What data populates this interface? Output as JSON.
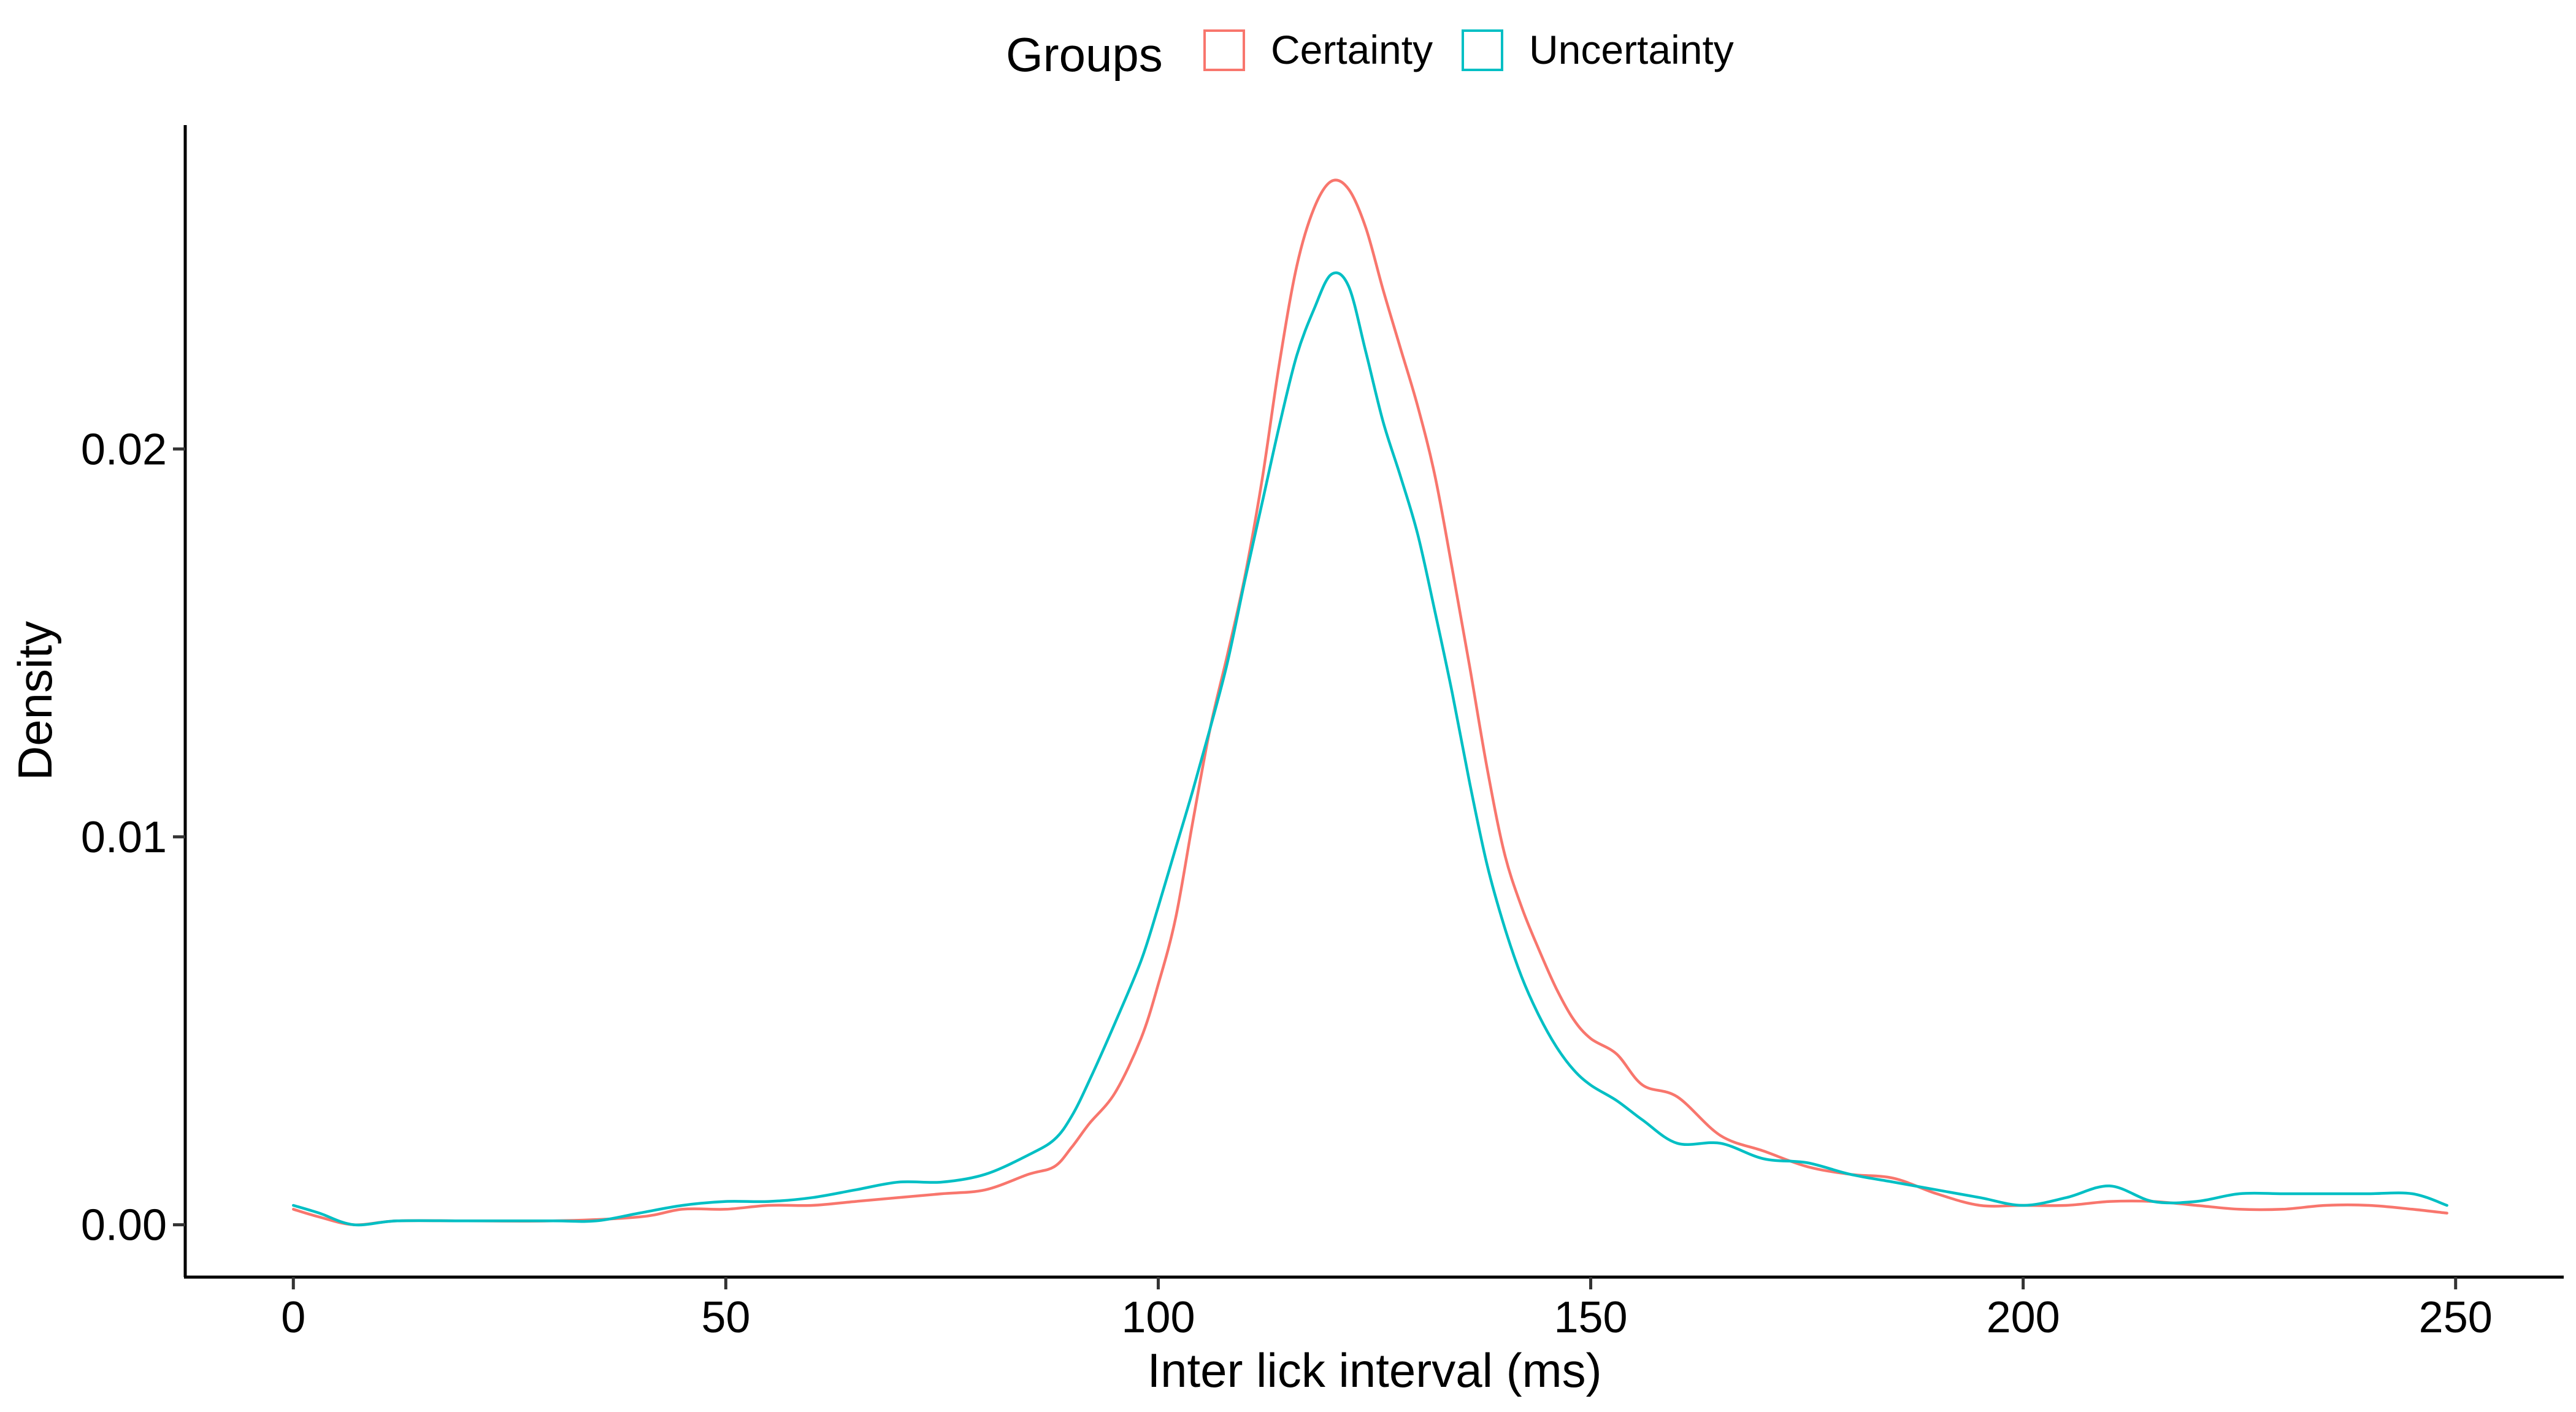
{
  "chart_data": {
    "type": "line",
    "xlabel": "Inter lick interval (ms)",
    "ylabel": "Density",
    "xlim": [
      -12.5,
      262.5
    ],
    "ylim": [
      -0.00135,
      0.02835
    ],
    "x_ticks": [
      0,
      50,
      100,
      150,
      200,
      250
    ],
    "x_tick_labels": [
      "0",
      "50",
      "100",
      "150",
      "200",
      "250"
    ],
    "y_ticks": [
      0.0,
      0.01,
      0.02
    ],
    "y_tick_labels": [
      "0.00",
      "0.01",
      "0.02"
    ],
    "grid": false,
    "legend": {
      "title": "Groups",
      "position": "top"
    },
    "series": [
      {
        "name": "Certainty",
        "color": "#F8766D",
        "x": [
          0,
          3,
          7,
          12,
          20,
          30,
          40,
          45,
          50,
          55,
          60,
          65,
          70,
          75,
          80,
          85,
          88,
          90,
          92,
          95,
          98,
          100,
          102,
          104,
          106,
          108,
          110,
          112,
          114,
          116,
          118,
          120,
          122,
          124,
          126,
          128,
          130,
          132,
          134,
          136,
          138,
          140,
          142,
          144,
          146,
          148,
          150,
          153,
          156,
          160,
          165,
          170,
          175,
          180,
          185,
          190,
          195,
          200,
          205,
          210,
          215,
          220,
          225,
          230,
          235,
          240,
          245,
          249
        ],
        "y": [
          0.0004,
          0.0002,
          0.0,
          0.0001,
          0.0001,
          0.0001,
          0.0002,
          0.0004,
          0.0004,
          0.0005,
          0.0005,
          0.0006,
          0.0007,
          0.0008,
          0.0009,
          0.0013,
          0.0015,
          0.002,
          0.0026,
          0.0034,
          0.0048,
          0.0062,
          0.0079,
          0.0104,
          0.0128,
          0.0147,
          0.0167,
          0.0192,
          0.0222,
          0.0247,
          0.0262,
          0.0269,
          0.0267,
          0.0257,
          0.0241,
          0.0226,
          0.0211,
          0.0193,
          0.0169,
          0.0144,
          0.0118,
          0.0096,
          0.0082,
          0.0071,
          0.0061,
          0.0053,
          0.0048,
          0.0044,
          0.0036,
          0.0033,
          0.0023,
          0.0019,
          0.0015,
          0.0013,
          0.0012,
          0.0008,
          0.0005,
          0.0005,
          0.0005,
          0.0006,
          0.0006,
          0.0005,
          0.0004,
          0.0004,
          0.0005,
          0.0005,
          0.0004,
          0.0003
        ]
      },
      {
        "name": "Uncertainty",
        "color": "#00BFC4",
        "x": [
          0,
          3,
          7,
          12,
          20,
          30,
          35,
          40,
          45,
          50,
          55,
          60,
          65,
          70,
          75,
          80,
          85,
          88,
          90,
          92,
          95,
          98,
          100,
          102,
          104,
          106,
          108,
          110,
          112,
          114,
          116,
          118,
          120,
          122,
          124,
          126,
          128,
          130,
          132,
          134,
          136,
          138,
          140,
          142,
          144,
          146,
          148,
          150,
          153,
          156,
          160,
          165,
          170,
          175,
          180,
          185,
          190,
          195,
          200,
          205,
          210,
          215,
          220,
          225,
          230,
          235,
          240,
          245,
          249
        ],
        "y": [
          0.0005,
          0.0003,
          0.0,
          0.0001,
          0.0001,
          0.0001,
          0.0001,
          0.0003,
          0.0005,
          0.0006,
          0.0006,
          0.0007,
          0.0009,
          0.0011,
          0.0011,
          0.0013,
          0.0018,
          0.0022,
          0.0028,
          0.0037,
          0.0052,
          0.0068,
          0.0082,
          0.0097,
          0.0112,
          0.0128,
          0.0145,
          0.0166,
          0.0186,
          0.0206,
          0.0224,
          0.0236,
          0.0245,
          0.0242,
          0.0225,
          0.0207,
          0.0193,
          0.0178,
          0.0158,
          0.0137,
          0.0114,
          0.0093,
          0.0077,
          0.0064,
          0.0054,
          0.0046,
          0.004,
          0.0036,
          0.0032,
          0.0027,
          0.0021,
          0.0021,
          0.0017,
          0.0016,
          0.0013,
          0.0011,
          0.0009,
          0.0007,
          0.0005,
          0.0007,
          0.001,
          0.0006,
          0.0006,
          0.0008,
          0.0008,
          0.0008,
          0.0008,
          0.0008,
          0.0005
        ]
      }
    ]
  }
}
